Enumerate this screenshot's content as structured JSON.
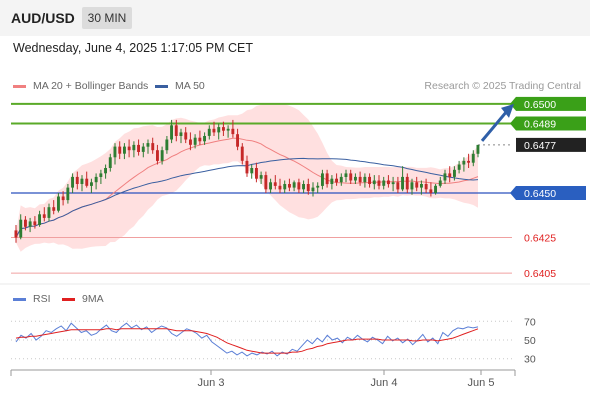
{
  "header": {
    "symbol": "AUD/USD",
    "timeframe": "30 MIN",
    "datetime": "Wednesday, June 4, 2025 1:17:05 PM CET"
  },
  "legend": {
    "ma20": {
      "label": "MA 20 + Bollinger Bands",
      "color": "#f08080"
    },
    "ma50": {
      "label": "MA 50",
      "color": "#3a5fa0"
    },
    "rsi": {
      "label": "RSI",
      "color": "#5b7fd6"
    },
    "rsi_ma": {
      "label": "9MA",
      "color": "#e02020"
    }
  },
  "watermark": "Research © 2025 Trading Central",
  "chart_data": [
    {
      "type": "candlestick",
      "x_ticks": [
        "Jun 3",
        "Jun 4",
        "Jun 5"
      ],
      "ylim": [
        0.64,
        0.6505
      ],
      "colors": {
        "up": "#2e7d32",
        "down": "#c62828",
        "bollinger": "#ffd5d5",
        "ma20": "#f08080",
        "ma50": "#3a5fa0"
      },
      "levels": [
        {
          "value": 0.65,
          "label": "0.6500",
          "kind": "resistance"
        },
        {
          "value": 0.6489,
          "label": "0.6489",
          "kind": "resistance"
        },
        {
          "value": 0.6477,
          "label": "0.6477",
          "kind": "current"
        },
        {
          "value": 0.645,
          "label": "0.6450",
          "kind": "pivot"
        },
        {
          "value": 0.6425,
          "label": "0.6425",
          "kind": "support"
        },
        {
          "value": 0.6405,
          "label": "0.6405",
          "kind": "support"
        }
      ],
      "candles": [
        [
          0.6429,
          0.6432,
          0.6422,
          0.6425
        ],
        [
          0.6425,
          0.6438,
          0.6424,
          0.6435
        ],
        [
          0.6435,
          0.6437,
          0.6429,
          0.6431
        ],
        [
          0.6431,
          0.6436,
          0.6428,
          0.6434
        ],
        [
          0.6434,
          0.6437,
          0.643,
          0.6432
        ],
        [
          0.6432,
          0.644,
          0.6431,
          0.6438
        ],
        [
          0.6438,
          0.6442,
          0.6434,
          0.6436
        ],
        [
          0.6436,
          0.6444,
          0.6434,
          0.6442
        ],
        [
          0.6442,
          0.6446,
          0.6438,
          0.644
        ],
        [
          0.644,
          0.645,
          0.6439,
          0.6448
        ],
        [
          0.6448,
          0.6451,
          0.6443,
          0.6446
        ],
        [
          0.6446,
          0.6455,
          0.6444,
          0.6453
        ],
        [
          0.6453,
          0.6461,
          0.645,
          0.6459
        ],
        [
          0.6459,
          0.6462,
          0.6452,
          0.6455
        ],
        [
          0.6455,
          0.646,
          0.6451,
          0.6458
        ],
        [
          0.6458,
          0.6462,
          0.6453,
          0.6454
        ],
        [
          0.6454,
          0.6458,
          0.645,
          0.6456
        ],
        [
          0.6456,
          0.6461,
          0.6452,
          0.6459
        ],
        [
          0.6459,
          0.6463,
          0.6455,
          0.6461
        ],
        [
          0.6461,
          0.6466,
          0.6458,
          0.6464
        ],
        [
          0.6464,
          0.6472,
          0.6462,
          0.647
        ],
        [
          0.647,
          0.6478,
          0.6466,
          0.6476
        ],
        [
          0.6476,
          0.6479,
          0.6469,
          0.6472
        ],
        [
          0.6472,
          0.6478,
          0.6469,
          0.6476
        ],
        [
          0.6476,
          0.648,
          0.647,
          0.6474
        ],
        [
          0.6474,
          0.6479,
          0.647,
          0.6477
        ],
        [
          0.6477,
          0.648,
          0.6471,
          0.6473
        ],
        [
          0.6473,
          0.6478,
          0.647,
          0.6476
        ],
        [
          0.6476,
          0.648,
          0.6472,
          0.6478
        ],
        [
          0.6478,
          0.6481,
          0.6472,
          0.6474
        ],
        [
          0.6474,
          0.6477,
          0.6466,
          0.6468
        ],
        [
          0.6468,
          0.6476,
          0.6466,
          0.6474
        ],
        [
          0.6474,
          0.6482,
          0.6472,
          0.648
        ],
        [
          0.648,
          0.6491,
          0.6478,
          0.6488
        ],
        [
          0.6488,
          0.6491,
          0.6479,
          0.6482
        ],
        [
          0.6482,
          0.6486,
          0.6478,
          0.6484
        ],
        [
          0.6484,
          0.6487,
          0.6478,
          0.648
        ],
        [
          0.648,
          0.6484,
          0.6474,
          0.6477
        ],
        [
          0.6477,
          0.6483,
          0.6475,
          0.6481
        ],
        [
          0.6481,
          0.6485,
          0.6477,
          0.6479
        ],
        [
          0.6479,
          0.6484,
          0.6477,
          0.6482
        ],
        [
          0.6482,
          0.6488,
          0.648,
          0.6486
        ],
        [
          0.6486,
          0.649,
          0.6482,
          0.6484
        ],
        [
          0.6484,
          0.6489,
          0.648,
          0.6487
        ],
        [
          0.6487,
          0.649,
          0.6482,
          0.6485
        ],
        [
          0.6485,
          0.6488,
          0.6481,
          0.6486
        ],
        [
          0.6486,
          0.6491,
          0.6481,
          0.6483
        ],
        [
          0.6483,
          0.6486,
          0.6474,
          0.6476
        ],
        [
          0.6476,
          0.6478,
          0.6466,
          0.6468
        ],
        [
          0.6468,
          0.6471,
          0.6459,
          0.6461
        ],
        [
          0.6461,
          0.6466,
          0.6458,
          0.6464
        ],
        [
          0.6464,
          0.6467,
          0.6456,
          0.6458
        ],
        [
          0.6458,
          0.6462,
          0.6455,
          0.646
        ],
        [
          0.646,
          0.6462,
          0.645,
          0.6452
        ],
        [
          0.6452,
          0.6458,
          0.645,
          0.6456
        ],
        [
          0.6456,
          0.646,
          0.6452,
          0.6454
        ],
        [
          0.6454,
          0.6458,
          0.645,
          0.6452
        ],
        [
          0.6452,
          0.6457,
          0.645,
          0.6455
        ],
        [
          0.6455,
          0.6458,
          0.6451,
          0.6453
        ],
        [
          0.6453,
          0.6457,
          0.6451,
          0.6456
        ],
        [
          0.6456,
          0.6458,
          0.645,
          0.6452
        ],
        [
          0.6452,
          0.6457,
          0.645,
          0.6455
        ],
        [
          0.6455,
          0.6458,
          0.6449,
          0.6451
        ],
        [
          0.6451,
          0.6456,
          0.6448,
          0.6453
        ],
        [
          0.6453,
          0.6456,
          0.645,
          0.6454
        ],
        [
          0.6454,
          0.6463,
          0.6452,
          0.6461
        ],
        [
          0.6461,
          0.6463,
          0.6453,
          0.6455
        ],
        [
          0.6455,
          0.646,
          0.6452,
          0.6458
        ],
        [
          0.6458,
          0.6461,
          0.6454,
          0.6456
        ],
        [
          0.6456,
          0.6461,
          0.6454,
          0.6459
        ],
        [
          0.6459,
          0.6463,
          0.6456,
          0.6461
        ],
        [
          0.6461,
          0.6463,
          0.6455,
          0.6457
        ],
        [
          0.6457,
          0.6461,
          0.6455,
          0.6459
        ],
        [
          0.6459,
          0.6462,
          0.6454,
          0.6456
        ],
        [
          0.6456,
          0.6461,
          0.6453,
          0.6459
        ],
        [
          0.6459,
          0.6461,
          0.6453,
          0.6455
        ],
        [
          0.6455,
          0.646,
          0.6452,
          0.6457
        ],
        [
          0.6457,
          0.646,
          0.6452,
          0.6454
        ],
        [
          0.6454,
          0.6459,
          0.6452,
          0.6457
        ],
        [
          0.6457,
          0.646,
          0.6453,
          0.6455
        ],
        [
          0.6455,
          0.6459,
          0.6451,
          0.6456
        ],
        [
          0.6456,
          0.6459,
          0.645,
          0.6452
        ],
        [
          0.6452,
          0.6465,
          0.6451,
          0.6459
        ],
        [
          0.6459,
          0.6461,
          0.645,
          0.6452
        ],
        [
          0.6452,
          0.6458,
          0.6449,
          0.6456
        ],
        [
          0.6456,
          0.6459,
          0.6451,
          0.6453
        ],
        [
          0.6453,
          0.6457,
          0.6449,
          0.6455
        ],
        [
          0.6455,
          0.6458,
          0.645,
          0.6452
        ],
        [
          0.6452,
          0.6456,
          0.6448,
          0.645
        ],
        [
          0.645,
          0.6455,
          0.6449,
          0.6454
        ],
        [
          0.6454,
          0.6459,
          0.6453,
          0.6457
        ],
        [
          0.6457,
          0.6463,
          0.6455,
          0.6461
        ],
        [
          0.6461,
          0.6465,
          0.6456,
          0.6459
        ],
        [
          0.6459,
          0.6465,
          0.6457,
          0.6463
        ],
        [
          0.6463,
          0.6468,
          0.6461,
          0.6466
        ],
        [
          0.6466,
          0.647,
          0.6462,
          0.6468
        ],
        [
          0.6468,
          0.6472,
          0.6464,
          0.6467
        ],
        [
          0.6467,
          0.6474,
          0.6465,
          0.6472
        ],
        [
          0.6472,
          0.6477,
          0.647,
          0.6477
        ]
      ]
    },
    {
      "type": "line",
      "title": "RSI",
      "x_ticks": [
        "Jun 3",
        "Jun 4",
        "Jun 5"
      ],
      "ylim": [
        20,
        80
      ],
      "y_ticks": [
        30,
        50,
        70
      ],
      "series": [
        {
          "name": "RSI",
          "values": [
            48,
            55,
            52,
            57,
            50,
            54,
            60,
            58,
            62,
            65,
            60,
            68,
            63,
            58,
            60,
            55,
            57,
            62,
            66,
            60,
            58,
            64,
            68,
            63,
            66,
            61,
            64,
            58,
            62,
            65,
            63,
            57,
            54,
            58,
            62,
            60,
            57,
            52,
            55,
            48,
            44,
            40,
            36,
            38,
            34,
            37,
            33,
            36,
            34,
            37,
            35,
            38,
            33,
            37,
            35,
            40,
            38,
            44,
            50,
            46,
            52,
            48,
            55,
            50,
            52,
            47,
            53,
            50,
            55,
            51,
            48,
            53,
            50,
            46,
            54,
            49,
            52,
            47,
            51,
            45,
            50,
            56,
            48,
            52,
            46,
            58,
            54,
            60,
            63,
            62,
            64,
            63,
            64
          ]
        },
        {
          "name": "9MA",
          "values": [
            52,
            53,
            53,
            54,
            54,
            55,
            56,
            57,
            58,
            59,
            60,
            61,
            61,
            61,
            61,
            61,
            61,
            61,
            62,
            62,
            61,
            62,
            62,
            62,
            62,
            62,
            62,
            62,
            62,
            62,
            62,
            61,
            60,
            60,
            60,
            60,
            59,
            58,
            57,
            55,
            53,
            50,
            47,
            45,
            43,
            41,
            39,
            38,
            37,
            36,
            36,
            36,
            36,
            36,
            36,
            37,
            37,
            38,
            40,
            41,
            43,
            44,
            46,
            47,
            48,
            49,
            50,
            50,
            51,
            51,
            51,
            51,
            51,
            50,
            50,
            50,
            50,
            50,
            50,
            49,
            49,
            50,
            50,
            50,
            49,
            50,
            51,
            52,
            54,
            56,
            58,
            60,
            62
          ]
        }
      ]
    }
  ]
}
